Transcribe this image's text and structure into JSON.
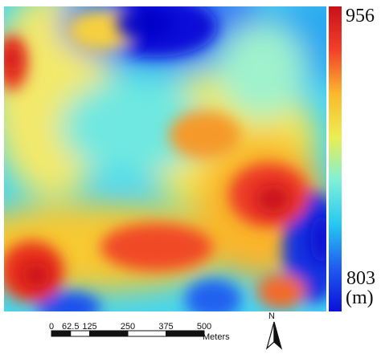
{
  "map": {
    "type": "elevation-heatmap",
    "colormap": [
      "#0a10d8",
      "#1f5cf0",
      "#26c8f2",
      "#7ff0d8",
      "#ecee52",
      "#fbb82e",
      "#f2402a",
      "#c8101a"
    ],
    "legend_placement": "right"
  },
  "legend": {
    "max_label": "956",
    "min_label": "803",
    "unit_label": "(m)",
    "max_value": 956,
    "min_value": 803
  },
  "scalebar": {
    "ticks": [
      "0",
      "62.5",
      "125",
      "250",
      "375",
      "500"
    ],
    "tick_values": [
      0,
      62.5,
      125,
      250,
      375,
      500
    ],
    "units": "Meters"
  },
  "north_arrow": {
    "letter": "N"
  }
}
